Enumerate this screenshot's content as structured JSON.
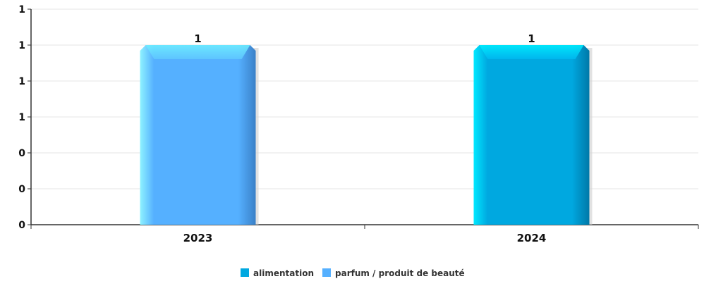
{
  "chart_data": {
    "type": "bar",
    "categories": [
      "2023",
      "2024"
    ],
    "series": [
      {
        "name": "alimentation",
        "values": [
          null,
          1
        ],
        "color": "#00a8e0"
      },
      {
        "name": "parfum / produit de beauté",
        "values": [
          1,
          null
        ],
        "color": "#55b0ff"
      }
    ],
    "data_labels": [
      "1",
      "1"
    ],
    "y_tick_labels": [
      "0",
      "0",
      "0",
      "1",
      "1",
      "1",
      "1"
    ],
    "ylim": [
      0,
      1.2
    ],
    "grid": true,
    "legend_position": "bottom-center",
    "title": "",
    "xlabel": "",
    "ylabel": ""
  }
}
